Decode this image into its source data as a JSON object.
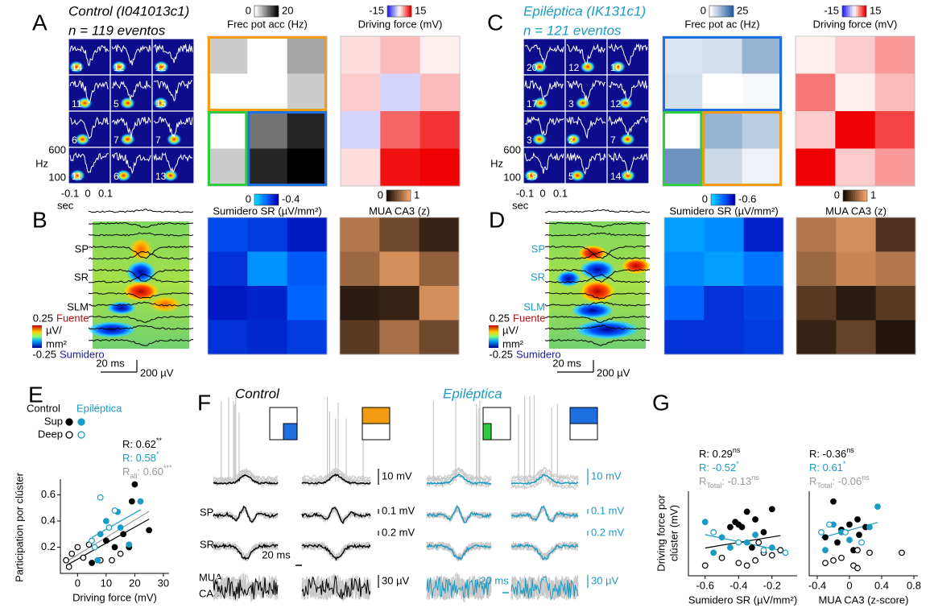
{
  "panels": {
    "A": {
      "letter": "A",
      "title": "Control (I041013c1)",
      "subtitle": "n = 119 eventos",
      "title_color": "#000000",
      "spectro_labels": [
        [
          14,
          12,
          12
        ],
        [
          11,
          5,
          15
        ],
        [
          6,
          7,
          7
        ],
        [
          11,
          6,
          13
        ]
      ],
      "freq_ticks": [
        600,
        100
      ],
      "freq_unit": "Hz",
      "time_ticks": [
        -0.1,
        0,
        0.1
      ],
      "time_unit": "sec",
      "heatmaps": [
        {
          "title": "Frec pot acc (Hz)",
          "range": [
            0,
            20
          ],
          "colormap": "gray",
          "values": [
            [
              4,
              0,
              7
            ],
            [
              0,
              0,
              4
            ],
            [
              0,
              11,
              17
            ],
            [
              4,
              17,
              20
            ]
          ]
        },
        {
          "title": "Driving force (mV)",
          "range": [
            -15,
            15
          ],
          "colormap": "bwr",
          "values": [
            [
              2,
              4,
              1
            ],
            [
              3,
              -3,
              4
            ],
            [
              -3,
              9,
              12
            ],
            [
              2,
              14,
              15
            ]
          ]
        }
      ]
    },
    "B": {
      "letter": "B",
      "layers": [
        "SP",
        "SR",
        "SLM"
      ],
      "layer_color": "#000000",
      "cbar_ticks": [
        0.25,
        -0.25
      ],
      "cbar_source": "Fuente",
      "cbar_sink": "Sumidero",
      "cbar_unit": [
        "µV/",
        "mm²"
      ],
      "scale_time": "20 ms",
      "scale_volt": "200 µV",
      "heatmaps": [
        {
          "title": "Sumidero SR (µV/mm²)",
          "range": [
            0,
            -0.4
          ],
          "colormap": "jet",
          "values": [
            [
              -0.25,
              -0.28,
              -0.35
            ],
            [
              -0.3,
              -0.12,
              -0.22
            ],
            [
              -0.35,
              -0.33,
              -0.2
            ],
            [
              -0.3,
              -0.32,
              -0.28
            ]
          ]
        },
        {
          "title": "MUA CA3 (z)",
          "range": [
            0,
            1
          ],
          "colormap": "copper",
          "values": [
            [
              0.7,
              0.4,
              0.15
            ],
            [
              0.6,
              0.85,
              0.55
            ],
            [
              0.1,
              0.15,
              0.85
            ],
            [
              0.3,
              0.65,
              0.4
            ]
          ]
        }
      ]
    },
    "C": {
      "letter": "C",
      "title": "Epiléptica (IK131c1)",
      "subtitle": "n = 121 eventos",
      "title_color": "#1a9bc4",
      "spectro_labels": [
        [
          20,
          12,
          10
        ],
        [
          17,
          3,
          12
        ],
        [
          3,
          2,
          7
        ],
        [
          19,
          5,
          14
        ]
      ],
      "freq_ticks": [
        600,
        100
      ],
      "freq_unit": "Hz",
      "time_ticks": [
        -0.1,
        0,
        0.1
      ],
      "time_unit": "sec",
      "heatmaps": [
        {
          "title": "Frec pot ac (Hz)",
          "range": [
            0,
            25
          ],
          "colormap": "blues",
          "values": [
            [
              4,
              5,
              12
            ],
            [
              5,
              0,
              1
            ],
            [
              0,
              12,
              8
            ],
            [
              17,
              6,
              2
            ]
          ]
        },
        {
          "title": "Driving force (mV)",
          "range": [
            -15,
            15
          ],
          "colormap": "bwr",
          "values": [
            [
              1,
              3,
              6
            ],
            [
              8,
              1,
              4
            ],
            [
              3,
              15,
              11
            ],
            [
              15,
              3,
              6
            ]
          ]
        }
      ]
    },
    "D": {
      "letter": "D",
      "layers": [
        "SP",
        "SR",
        "SLM"
      ],
      "layer_color": "#1a9bc4",
      "cbar_ticks": [
        0.25,
        -0.25
      ],
      "cbar_source": "Fuente",
      "cbar_sink": "Sumidero",
      "cbar_unit": [
        "µV/",
        "mm²"
      ],
      "scale_time": "20 ms",
      "scale_volt": "200 µV",
      "heatmaps": [
        {
          "title": "Sumidero SR (µV/mm²)",
          "range": [
            0,
            -0.6
          ],
          "colormap": "jet",
          "values": [
            [
              -0.15,
              -0.2,
              -0.5
            ],
            [
              -0.2,
              -0.15,
              -0.25
            ],
            [
              -0.3,
              -0.45,
              -0.4
            ],
            [
              -0.45,
              -0.45,
              -0.42
            ]
          ]
        },
        {
          "title": "MUA CA3 (z)",
          "range": [
            0,
            1
          ],
          "colormap": "copper",
          "values": [
            [
              0.7,
              0.85,
              0.25
            ],
            [
              0.6,
              0.8,
              0.7
            ],
            [
              0.3,
              0.1,
              0.3
            ],
            [
              0.15,
              0.35,
              0.05
            ]
          ]
        }
      ]
    },
    "E": {
      "letter": "E",
      "legend": {
        "control": "Control",
        "epileptic": "Epiléptica",
        "sup": "Sup",
        "deep": "Deep"
      },
      "stats": [
        {
          "color": "#000000",
          "parts": [
            {
              "text": "R: 0.62"
            },
            {
              "text": "**",
              "style": "sup"
            }
          ]
        },
        {
          "color": "#1a9bc4",
          "parts": [
            {
              "text": "R: 0.58"
            },
            {
              "text": "*",
              "style": "sup"
            }
          ]
        },
        {
          "color": "#999999",
          "parts": [
            {
              "text": "R"
            },
            {
              "text": "all",
              "style": "sub"
            },
            {
              "text": ": 0.60"
            },
            {
              "text": "***",
              "style": "sup"
            }
          ]
        }
      ],
      "chart": {
        "type": "scatter",
        "xlabel": "Driving force (mV)",
        "ylabel": [
          "Participation por clúster"
        ],
        "xlim": [
          -6,
          32
        ],
        "ylim": [
          0,
          0.72
        ],
        "xticks": [
          0,
          10,
          20,
          30
        ],
        "yticks": [
          0.2,
          0.4,
          0.6
        ],
        "groups": [
          {
            "color": "#000000",
            "filled": true,
            "x": [
              5,
              10,
              13,
              16,
              18,
              19,
              25,
              20
            ],
            "y": [
              0.08,
              0.25,
              0.2,
              0.3,
              0.2,
              0.55,
              0.33,
              0.68
            ]
          },
          {
            "color": "#000000",
            "filled": false,
            "x": [
              -3,
              -2,
              0,
              2,
              4,
              8,
              12,
              15,
              -4
            ],
            "y": [
              0.05,
              0.15,
              0.2,
              0.12,
              0.22,
              0.1,
              0.1,
              0.15,
              0.1
            ]
          },
          {
            "color": "#1a9bc4",
            "filled": true,
            "x": [
              8,
              10,
              14,
              15,
              22,
              7,
              18
            ],
            "y": [
              0.3,
              0.4,
              0.47,
              0.35,
              0.55,
              0.1,
              0.22
            ]
          },
          {
            "color": "#1a9bc4",
            "filled": false,
            "x": [
              5,
              8,
              13,
              11,
              6
            ],
            "y": [
              0.25,
              0.58,
              0.48,
              0.35,
              0.2
            ]
          }
        ]
      }
    },
    "F": {
      "letter": "F",
      "control": "Control",
      "epileptic": "Epiléptica",
      "rows": [
        "SP",
        "SR"
      ],
      "mua": [
        "MUA",
        "CA3"
      ],
      "scale_control": [
        "10 mV",
        "0.1 mV",
        "0.2 mV",
        "30 µV"
      ],
      "scale_epi": [
        "10 mV",
        "0.1 mV",
        "0.2 mV",
        "30 µV"
      ],
      "time_control": "20 ms",
      "time_epi": "20 ms"
    },
    "G": {
      "letter": "G",
      "ylabel": [
        "Driving force por",
        "clúster (mV)"
      ],
      "charts": [
        {
          "type": "scatter",
          "xlabel": "Sumidero SR (µV/mm²)",
          "xlim": [
            -0.7,
            -0.05
          ],
          "ylim": [
            -5,
            28
          ],
          "xticks": [
            -0.6,
            -0.4,
            -0.2
          ],
          "stats": [
            {
              "color": "#000000",
              "parts": [
                {
                  "text": "R: 0.29"
                },
                {
                  "text": "ns",
                  "style": "sup"
                }
              ]
            },
            {
              "color": "#1a9bc4",
              "parts": [
                {
                  "text": "R: -0.52"
                },
                {
                  "text": "*",
                  "style": "sup"
                }
              ]
            },
            {
              "color": "#999999",
              "parts": [
                {
                  "text": "R"
                },
                {
                  "text": "Total",
                  "style": "sub"
                },
                {
                  "text": ": -0.13"
                },
                {
                  "text": "ns",
                  "style": "sup"
                }
              ]
            }
          ],
          "groups": [
            {
              "color": "#000000",
              "filled": true,
              "x": [
                -0.4,
                -0.35,
                -0.3,
                -0.25,
                -0.45,
                -0.2,
                -0.32,
                -0.38,
                -0.42
              ],
              "y": [
                15,
                20,
                17,
                12,
                14,
                21,
                6,
                14,
                16
              ]
            },
            {
              "color": "#000000",
              "filled": false,
              "x": [
                -0.5,
                -0.4,
                -0.3,
                -0.2,
                -0.25,
                -0.6,
                -0.35,
                -0.15,
                -0.28
              ],
              "y": [
                2,
                0,
                1,
                3,
                4,
                -1,
                -1,
                5,
                8
              ]
            },
            {
              "color": "#1a9bc4",
              "filled": true,
              "x": [
                -0.6,
                -0.5,
                -0.45,
                -0.35,
                -0.2,
                -0.55,
                -0.3
              ],
              "y": [
                16,
                10,
                6,
                8,
                6,
                4,
                11
              ]
            },
            {
              "color": "#1a9bc4",
              "filled": false,
              "x": [
                -0.55,
                -0.4,
                -0.25,
                -0.12
              ],
              "y": [
                12,
                8,
                5,
                4
              ]
            }
          ]
        },
        {
          "type": "scatter",
          "xlabel": "MUA CA3 (z-score)",
          "xlim": [
            -0.5,
            0.85
          ],
          "ylim": [
            -5,
            28
          ],
          "xticks": [
            -0.4,
            0,
            0.4,
            0.8
          ],
          "stats": [
            {
              "color": "#000000",
              "parts": [
                {
                  "text": "R: -0.36"
                },
                {
                  "text": "ns",
                  "style": "sup"
                }
              ]
            },
            {
              "color": "#1a9bc4",
              "parts": [
                {
                  "text": "R: 0.61"
                },
                {
                  "text": "*",
                  "style": "sup"
                }
              ]
            },
            {
              "color": "#999999",
              "parts": [
                {
                  "text": "R"
                },
                {
                  "text": "Total",
                  "style": "sub"
                },
                {
                  "text": ": -0.06"
                },
                {
                  "text": "ns",
                  "style": "sup"
                }
              ]
            }
          ],
          "groups": [
            {
              "color": "#000000",
              "filled": true,
              "x": [
                -0.2,
                -0.1,
                0,
                0.1,
                0.2,
                -0.3,
                0.05,
                -0.15,
                0.12
              ],
              "y": [
                24,
                13,
                15,
                17,
                14,
                10,
                5,
                8,
                11
              ]
            },
            {
              "color": "#000000",
              "filled": false,
              "x": [
                -0.3,
                -0.1,
                0.05,
                0.1,
                0.25,
                0.65,
                -0.2,
                0.1
              ],
              "y": [
                0,
                2,
                -1,
                -2,
                4,
                4,
                1,
                5
              ]
            },
            {
              "color": "#1a9bc4",
              "filled": true,
              "x": [
                -0.3,
                -0.2,
                -0.1,
                0.35,
                0.25,
                0
              ],
              "y": [
                5,
                15,
                12,
                22,
                14,
                9
              ]
            },
            {
              "color": "#1a9bc4",
              "filled": false,
              "x": [
                -0.35,
                -0.25,
                -0.05,
                0.15
              ],
              "y": [
                12,
                15,
                12,
                8
              ]
            }
          ]
        }
      ]
    }
  }
}
